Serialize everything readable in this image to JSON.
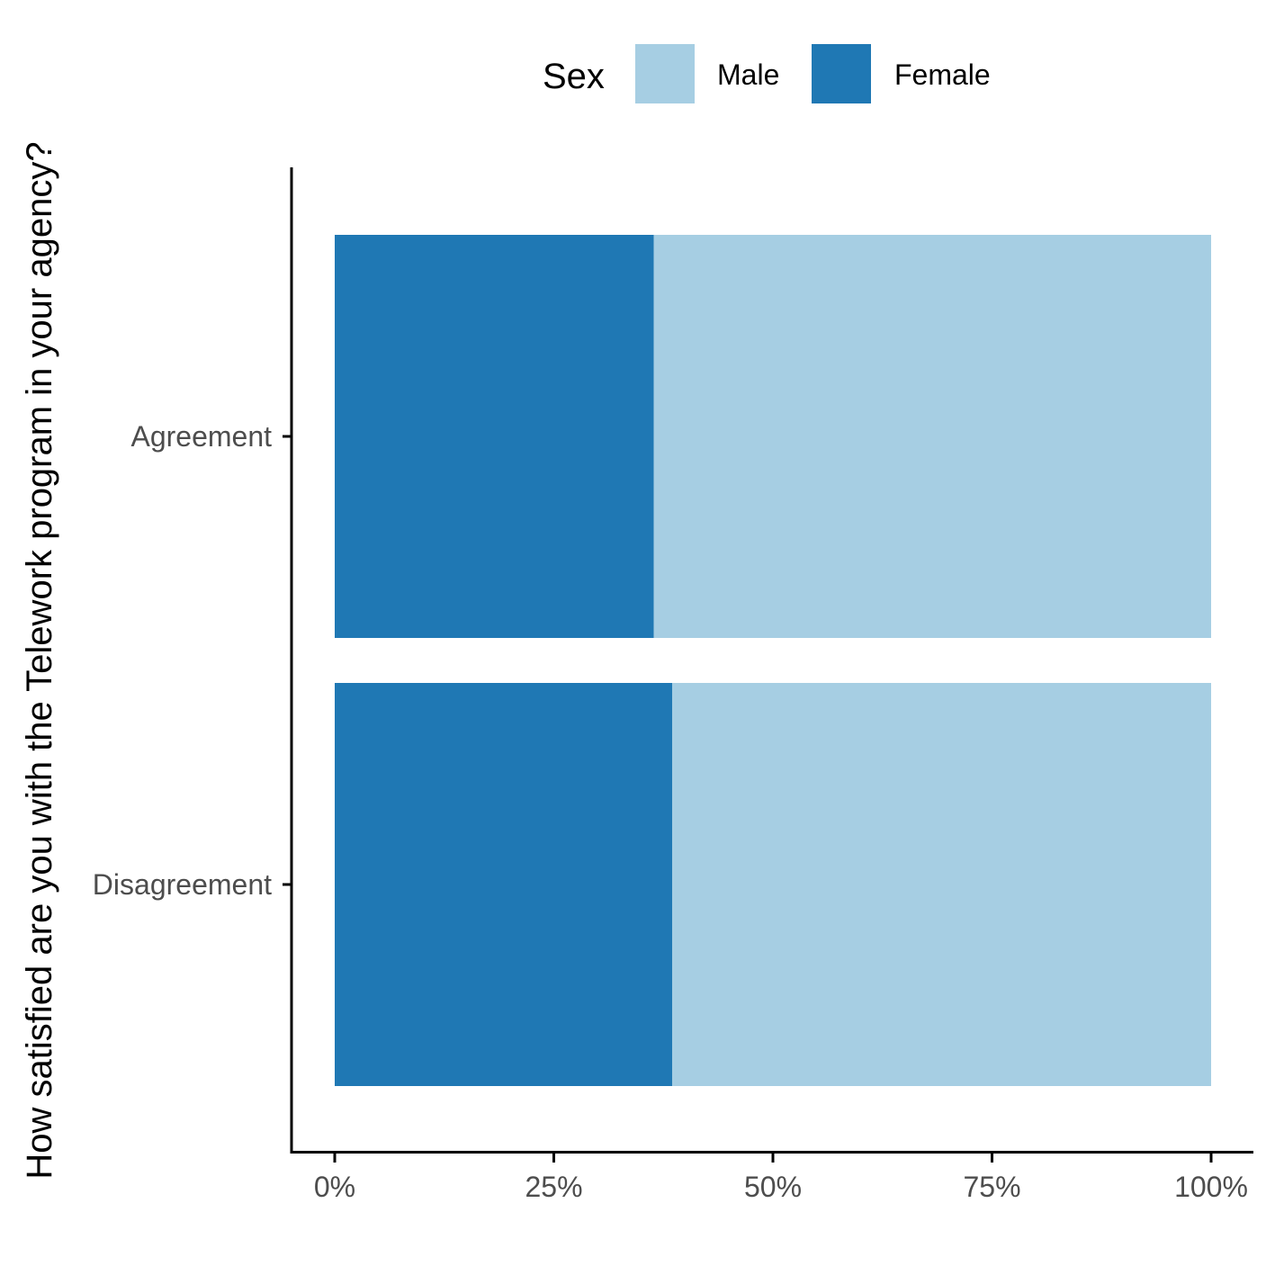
{
  "chart_data": {
    "type": "bar",
    "orientation": "horizontal",
    "stacked": "percent",
    "categories": [
      "Agreement",
      "Disagreement"
    ],
    "series": [
      {
        "name": "Female",
        "color": "#1f78b4",
        "values": [
          36.4,
          38.5
        ]
      },
      {
        "name": "Male",
        "color": "#a6cee3",
        "values": [
          63.6,
          61.5
        ]
      }
    ],
    "xlabel": "",
    "ylabel": "How satisfied are you with the Telework program in your agency?",
    "xlim": [
      0,
      100
    ],
    "x_ticks": [
      0,
      25,
      50,
      75,
      100
    ],
    "x_tick_labels": [
      "0%",
      "25%",
      "50%",
      "75%",
      "100%"
    ],
    "legend": {
      "title": "Sex",
      "position": "top",
      "items": [
        {
          "label": "Male",
          "color": "#a6cee3"
        },
        {
          "label": "Female",
          "color": "#1f78b4"
        }
      ]
    },
    "grid": false
  }
}
